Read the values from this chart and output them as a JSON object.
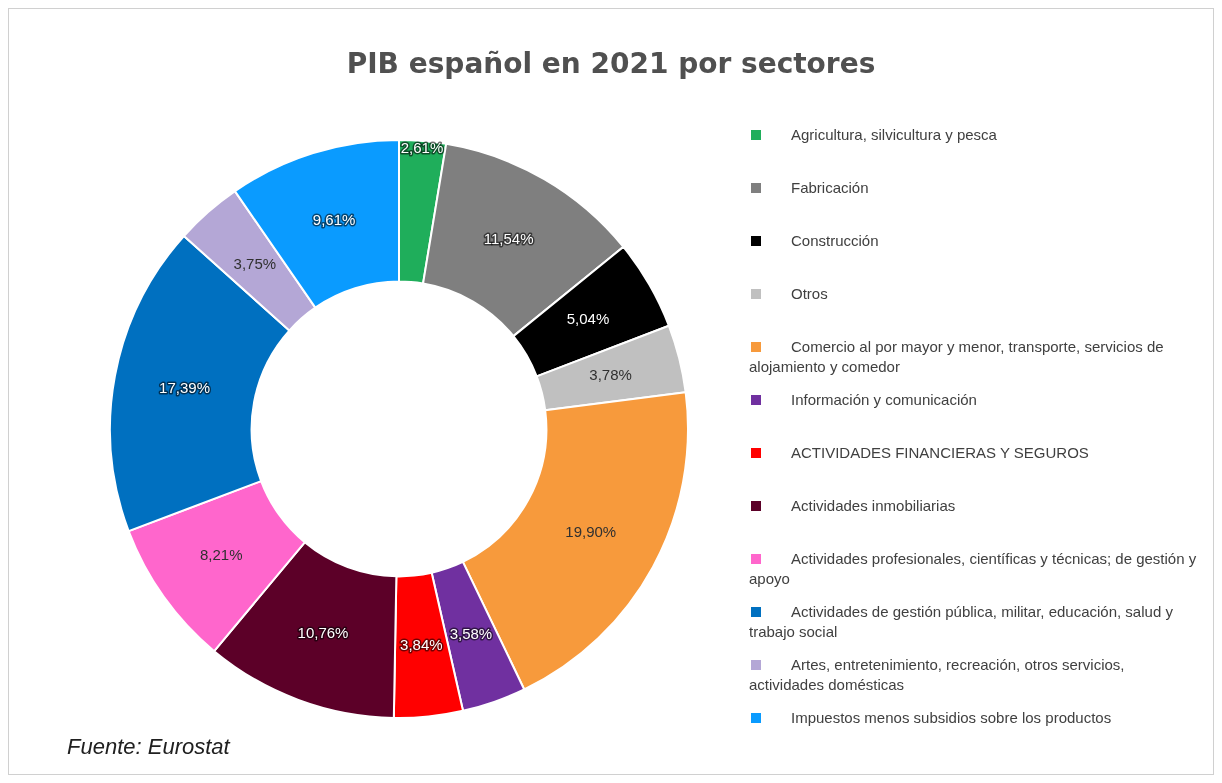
{
  "chart_data": {
    "type": "donut",
    "title": "PIB español en 2021 por sectores",
    "categories": [
      "Agricultura, silvicultura y pesca",
      "Fabricación",
      "Construcción",
      "Otros",
      "Comercio al por mayor y menor, transporte, servicios de alojamiento y comedor",
      "Información y comunicación",
      "ACTIVIDADES FINANCIERAS Y SEGUROS",
      "Actividades inmobiliarias",
      "Actividades profesionales, científicas y técnicas; de gestión y apoyo",
      "Actividades de gestión pública, militar, educación, salud y trabajo social",
      "Artes, entretenimiento, recreación, otros servicios, actividades domésticas",
      "Impuestos menos subsidios sobre los productos"
    ],
    "values": [
      2.61,
      11.54,
      5.04,
      3.78,
      19.9,
      3.58,
      3.84,
      10.76,
      8.21,
      17.39,
      3.75,
      9.61
    ],
    "value_labels": [
      "2,61%",
      "11,54%",
      "5,04%",
      "3,78%",
      "19,90%",
      "3,58%",
      "3,84%",
      "10,76%",
      "8,21%",
      "17,39%",
      "3,75%",
      "9,61%"
    ],
    "colors": [
      "#1fae5b",
      "#7f7f7f",
      "#000000",
      "#c0c0c0",
      "#f79a3c",
      "#7030a0",
      "#ff0000",
      "#5c0028",
      "#ff66cc",
      "#0070c0",
      "#b4a7d6",
      "#0a9bff"
    ],
    "legend": "right",
    "annotations": [
      "Fuente: Eurostat"
    ]
  }
}
